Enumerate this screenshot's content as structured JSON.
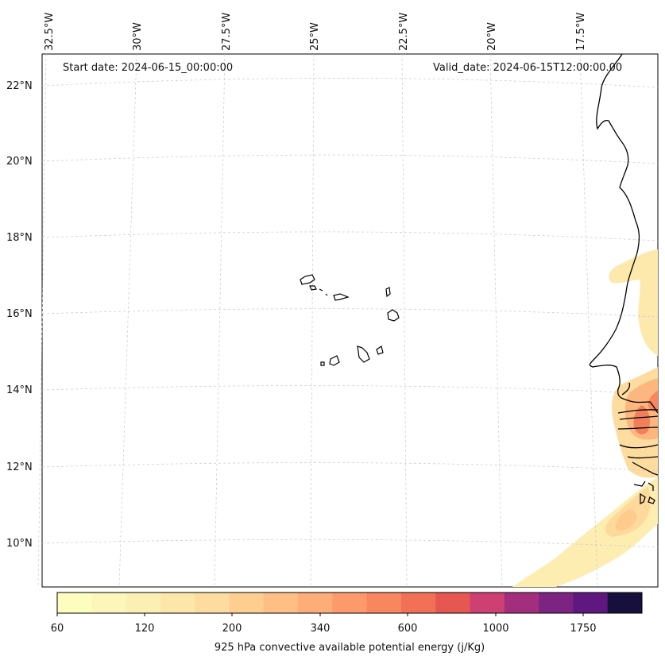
{
  "header": {
    "start_date": "Start date: 2024-06-15_00:00:00",
    "valid_date": "Valid_date: 2024-06-15T12:00:00.00"
  },
  "map": {
    "lat_labels": [
      "22°N",
      "20°N",
      "18°N",
      "16°N",
      "14°N",
      "12°N",
      "10°N"
    ],
    "lon_labels": [
      "32.5°W",
      "30°W",
      "27.5°W",
      "25°W",
      "22.5°W",
      "20°W",
      "17.5°W"
    ],
    "coastline_color": "#000000",
    "gridline_color": "#c8c8c8"
  },
  "colorbar": {
    "label": "925 hPa convective available potential energy (j/Kg)",
    "tick_labels": [
      "60",
      "120",
      "200",
      "340",
      "600",
      "1000",
      "1750"
    ],
    "colors": [
      "#fcfdbf",
      "#fcf6bb",
      "#fcefb4",
      "#fde6aa",
      "#fedc9f",
      "#fece91",
      "#febe84",
      "#fdad78",
      "#fc9a6b",
      "#f8865f",
      "#f27156",
      "#e55750",
      "#cf4072",
      "#a32e7e",
      "#7d2482",
      "#5f187f",
      "#170f3c"
    ]
  }
}
